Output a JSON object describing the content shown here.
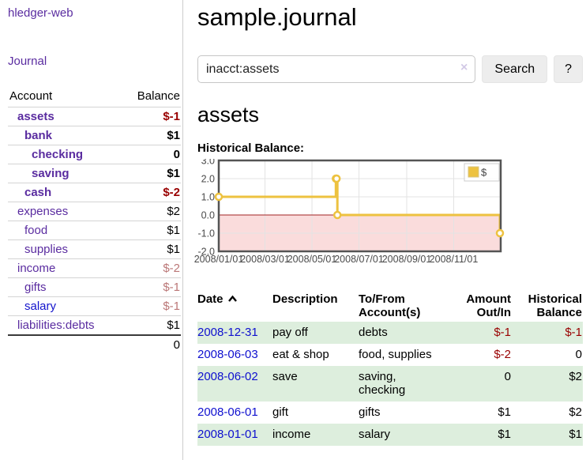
{
  "app": {
    "title": "hledger-web"
  },
  "sidebar": {
    "nav": {
      "journal_label": "Journal"
    },
    "accounts": {
      "headers": {
        "account": "Account",
        "balance": "Balance"
      },
      "rows": [
        {
          "name": "assets",
          "balance": "$-1",
          "depth": 1,
          "bold": true,
          "balance_color": "negative-strong",
          "link_color": "purple"
        },
        {
          "name": "bank",
          "balance": "$1",
          "depth": 2,
          "bold": true,
          "balance_color": "normal",
          "link_color": "purple"
        },
        {
          "name": "checking",
          "balance": "0",
          "depth": 3,
          "bold": true,
          "balance_color": "normal",
          "link_color": "purple"
        },
        {
          "name": "saving",
          "balance": "$1",
          "depth": 3,
          "bold": true,
          "balance_color": "normal",
          "link_color": "purple"
        },
        {
          "name": "cash",
          "balance": "$-2",
          "depth": 2,
          "bold": true,
          "balance_color": "negative-strong",
          "link_color": "purple"
        },
        {
          "name": "expenses",
          "balance": "$2",
          "depth": 1,
          "bold": false,
          "balance_color": "normal",
          "link_color": "purple"
        },
        {
          "name": "food",
          "balance": "$1",
          "depth": 2,
          "bold": false,
          "balance_color": "normal",
          "link_color": "purple"
        },
        {
          "name": "supplies",
          "balance": "$1",
          "depth": 2,
          "bold": false,
          "balance_color": "normal",
          "link_color": "purple"
        },
        {
          "name": "income",
          "balance": "$-2",
          "depth": 1,
          "bold": false,
          "balance_color": "negative-muted",
          "link_color": "purple"
        },
        {
          "name": "gifts",
          "balance": "$-1",
          "depth": 2,
          "bold": false,
          "balance_color": "negative-muted",
          "link_color": "purple"
        },
        {
          "name": "salary",
          "balance": "$-1",
          "depth": 2,
          "bold": false,
          "balance_color": "negative-muted",
          "link_color": "blue"
        },
        {
          "name": "liabilities:debts",
          "balance": "$1",
          "depth": 1,
          "bold": false,
          "balance_color": "normal",
          "link_color": "purple"
        }
      ],
      "total": "0"
    }
  },
  "header": {
    "title": "sample.journal"
  },
  "search": {
    "value": "inacct:assets",
    "clear_icon": "×",
    "button_label": "Search",
    "help_label": "?"
  },
  "account_page": {
    "heading": "assets",
    "chart_label": "Historical Balance:"
  },
  "chart_data": {
    "type": "line",
    "title": "Historical Balance:",
    "step": true,
    "series": [
      {
        "name": "$",
        "color": "#edc240",
        "points": [
          [
            "2008-01-01",
            1
          ],
          [
            "2008-06-01",
            2
          ],
          [
            "2008-06-02",
            2
          ],
          [
            "2008-06-03",
            0
          ],
          [
            "2008-12-31",
            -1
          ]
        ]
      }
    ],
    "x_range": [
      "2008-01-01",
      "2009-01-01"
    ],
    "ylim": [
      -2.0,
      3.0
    ],
    "y_ticks": [
      3.0,
      2.0,
      1.0,
      0.0,
      -1.0,
      -2.0
    ],
    "x_ticks": [
      {
        "date": "2008-01-01",
        "label": "2008/01/01"
      },
      {
        "date": "2008-03-01",
        "label": "2008/03/01"
      },
      {
        "date": "2008-05-01",
        "label": "2008/05/01"
      },
      {
        "date": "2008-07-01",
        "label": "2008/07/01"
      },
      {
        "date": "2008-09-01",
        "label": "2008/09/01"
      },
      {
        "date": "2008-11-01",
        "label": "2008/11/01"
      }
    ],
    "legend": {
      "label": "$",
      "position": "top-right"
    },
    "grid": true,
    "negative_region_color": "#fadcdc",
    "zero_line_color": "#a22323",
    "border_color": "#545454",
    "tick_color": "#4a4a4a"
  },
  "register": {
    "columns": [
      {
        "label": "Date",
        "sorted": "ascending"
      },
      {
        "label": "Description"
      },
      {
        "label": "To/From Account(s)"
      },
      {
        "label": "Amount Out/In"
      },
      {
        "label": "Historical Balance"
      }
    ],
    "rows": [
      {
        "date": "2008-12-31",
        "description": "pay off",
        "accounts": "debts",
        "amount": "$-1",
        "balance": "$-1",
        "shaded": true
      },
      {
        "date": "2008-06-03",
        "description": "eat & shop",
        "accounts": "food, supplies",
        "amount": "$-2",
        "balance": "0",
        "shaded": false
      },
      {
        "date": "2008-06-02",
        "description": "save",
        "accounts": "saving, checking",
        "amount": "0",
        "balance": "$2",
        "shaded": true
      },
      {
        "date": "2008-06-01",
        "description": "gift",
        "accounts": "gifts",
        "amount": "$1",
        "balance": "$2",
        "shaded": false
      },
      {
        "date": "2008-01-01",
        "description": "income",
        "accounts": "salary",
        "amount": "$1",
        "balance": "$1",
        "shaded": true
      }
    ]
  },
  "colors": {
    "link_purple": "#5a2ca0",
    "link_blue": "#1414cc",
    "date_link_blue": "#0f10cf",
    "negative_strong": "#990000",
    "negative_muted": "#bb7777",
    "row_shade_green": "#ddeedd",
    "chart_line_gold": "#edc240"
  }
}
